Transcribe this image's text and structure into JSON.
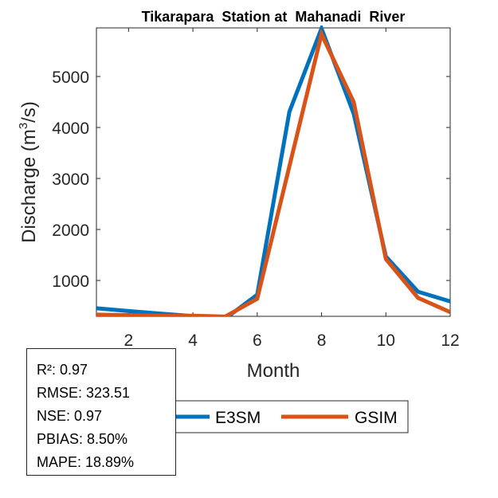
{
  "chart_data": {
    "type": "line",
    "title": "Tikarapara  Station at  Mahanadi  River",
    "xlabel": "Month",
    "ylabel": "Discharge (m³/s)",
    "ylabel_parts": {
      "base": "Discharge (m",
      "sup": "3",
      "tail": "/s)"
    },
    "xlim": [
      1,
      12
    ],
    "ylim": [
      297,
      5953
    ],
    "xticks": [
      2,
      4,
      6,
      8,
      10,
      12
    ],
    "yticks": [
      1000,
      2000,
      3000,
      4000,
      5000
    ],
    "grid": false,
    "x": [
      1,
      2,
      3,
      4,
      5,
      6,
      7,
      8,
      9,
      10,
      11,
      12
    ],
    "series": [
      {
        "name": "E3SM",
        "color": "#0072BD",
        "values": [
          455,
          400,
          350,
          300,
          250,
          720,
          4310,
          5940,
          4270,
          1470,
          780,
          590
        ]
      },
      {
        "name": "GSIM",
        "color": "#D95319",
        "values": [
          330,
          320,
          310,
          310,
          290,
          640,
          3240,
          5830,
          4500,
          1420,
          660,
          380
        ]
      }
    ],
    "legend": {
      "placement": "bottom-outside",
      "orientation": "horizontal",
      "entries": [
        "E3SM",
        "GSIM"
      ]
    },
    "annotation": {
      "placement": "bottom-left",
      "lines": [
        "R²: 0.97",
        "RMSE: 323.51",
        "NSE: 0.97",
        "PBIAS: 8.50%",
        "MAPE: 18.89%"
      ]
    }
  }
}
